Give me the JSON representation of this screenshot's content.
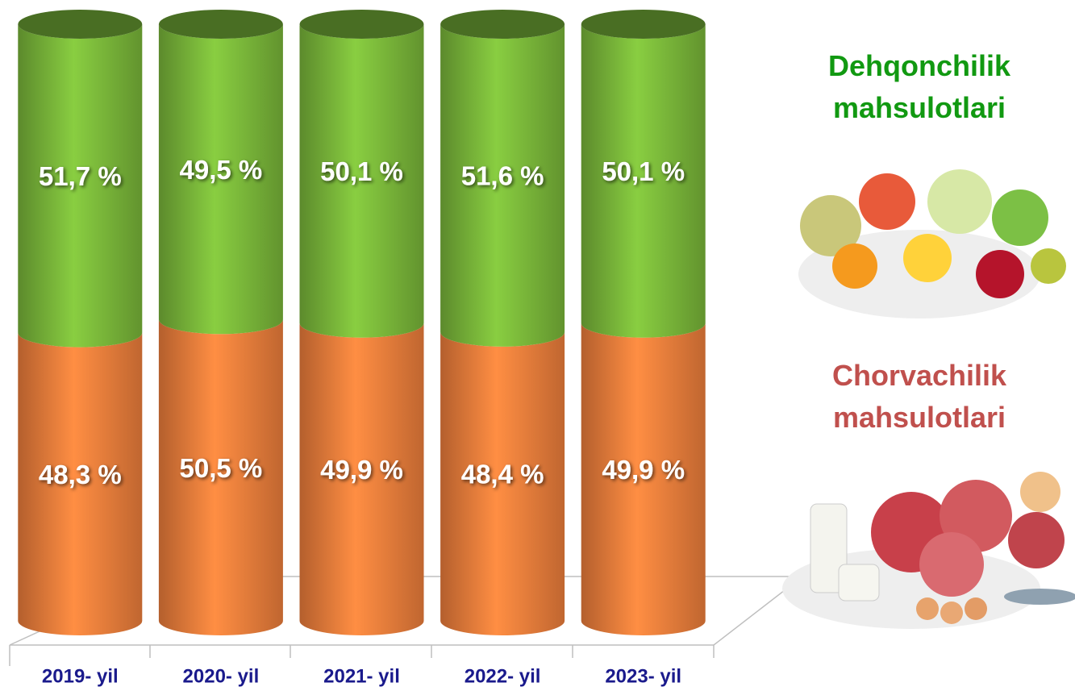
{
  "chart_data": {
    "type": "stacked_bar",
    "categories": [
      "2019- yil",
      "2020- yil",
      "2021- yil",
      "2022- yil",
      "2023- yil"
    ],
    "series": [
      {
        "name": "Chorvachilik mahsulotlari",
        "color": "#f07f3c",
        "values": [
          48.3,
          50.5,
          49.9,
          48.4,
          49.9
        ],
        "value_labels": [
          "48,3 %",
          "50,5 %",
          "49,9 %",
          "48,4 %",
          "49,9 %"
        ]
      },
      {
        "name": "Dehqonchilik mahsulotlari",
        "color": "#7ab83a",
        "values": [
          51.7,
          49.5,
          50.1,
          51.6,
          50.1
        ],
        "value_labels": [
          "51,7 %",
          "49,5 %",
          "50,1 %",
          "51,6 %",
          "50,1 %"
        ]
      }
    ],
    "ylim": [
      0,
      100
    ],
    "legend": "right"
  }
}
